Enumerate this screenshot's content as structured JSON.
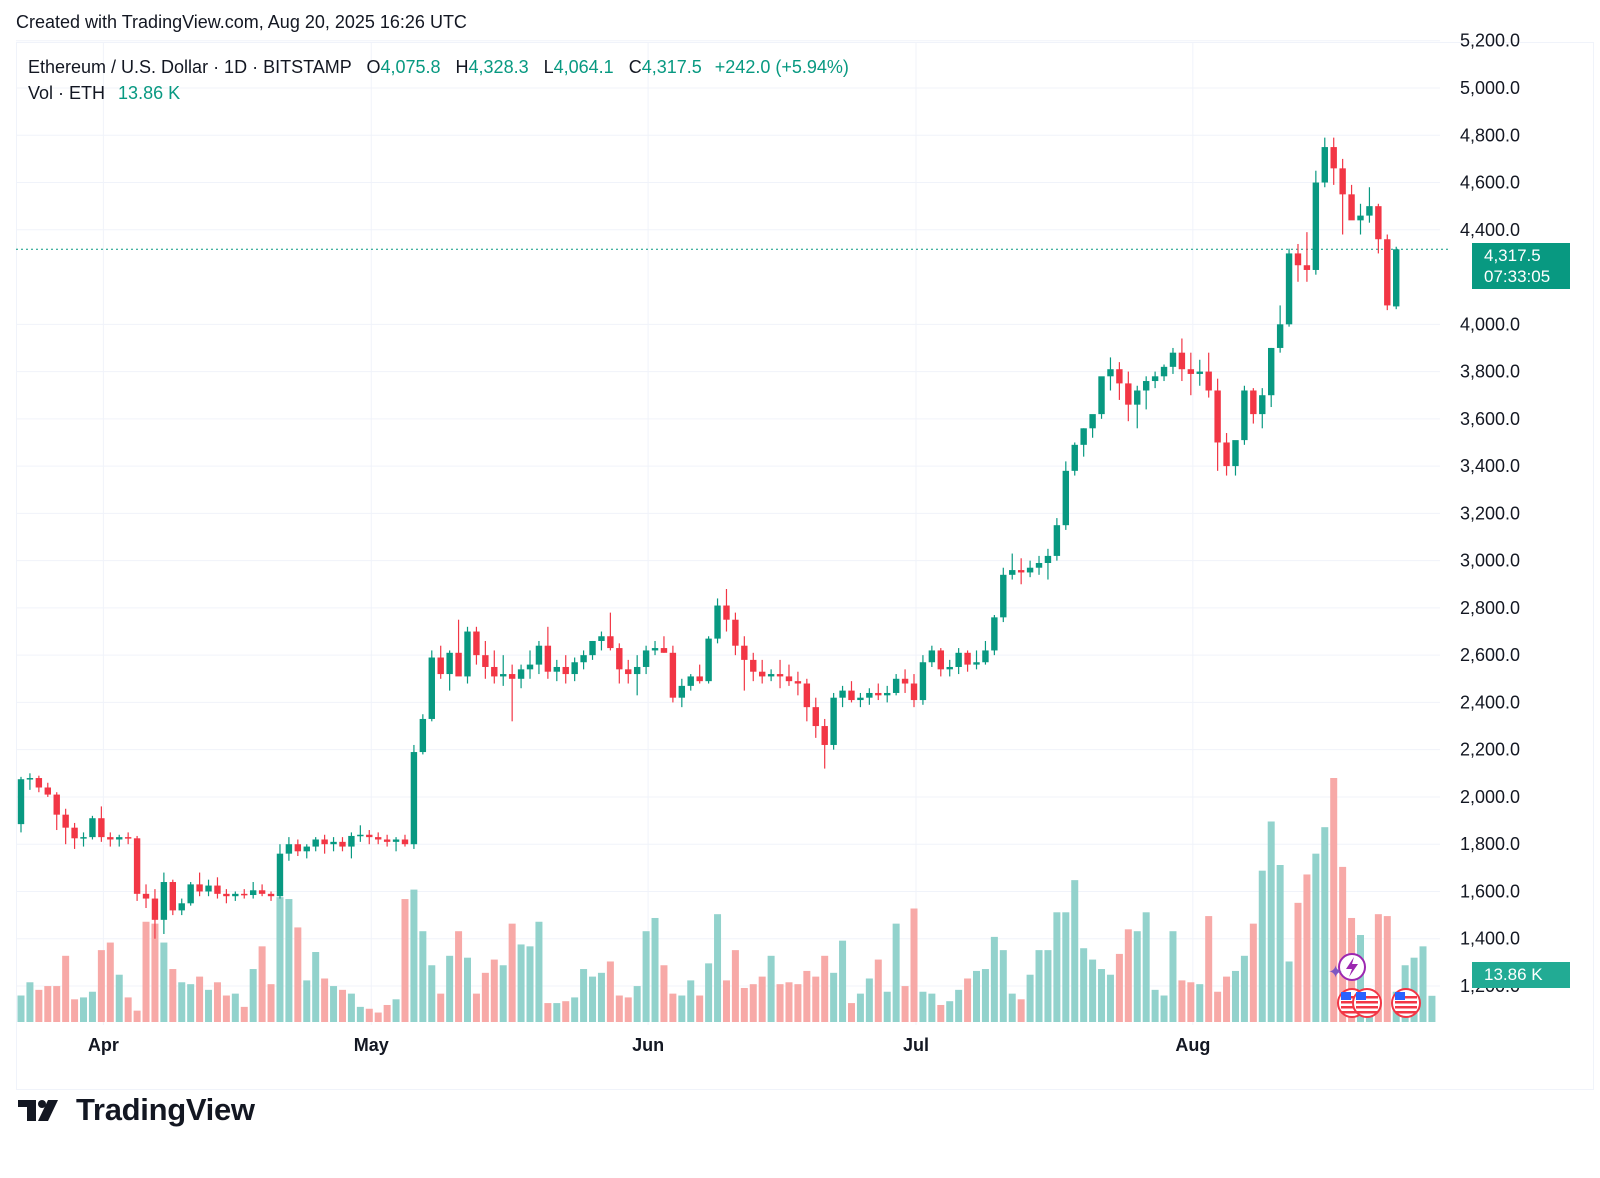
{
  "header": {
    "created_text": "Created with TradingView.com, Aug 20, 2025 16:26 UTC"
  },
  "legend": {
    "symbol": "Ethereum / U.S. Dollar · 1D · BITSTAMP",
    "open_label": "O",
    "open_value": "4,075.8",
    "high_label": "H",
    "high_value": "4,328.3",
    "low_label": "L",
    "low_value": "4,064.1",
    "close_label": "C",
    "close_value": "4,317.5",
    "change_value": "+242.0 (+5.94%)",
    "vol_label": "Vol · ETH",
    "vol_value": "13.86 K"
  },
  "price_tag": {
    "price": "4,317.5",
    "countdown": "07:33:05"
  },
  "volume_tag": {
    "value": "13.86 K"
  },
  "brand": {
    "name": "TradingView"
  },
  "colors": {
    "up": "#089981",
    "down": "#f23645",
    "vol_up": "#92d2cc",
    "vol_down": "#f7a9a7",
    "grid": "#f0f3fa"
  },
  "chart_data": {
    "type": "candlestick",
    "y_axis": {
      "ticks": [
        "1,200.0",
        "1,400.0",
        "1,600.0",
        "1,800.0",
        "2,000.0",
        "2,200.0",
        "2,400.0",
        "2,600.0",
        "2,800.0",
        "3,000.0",
        "3,200.0",
        "3,400.0",
        "3,600.0",
        "3,800.0",
        "4,000.0",
        "4,400.0",
        "4,600.0",
        "4,800.0",
        "5,000.0",
        "5,200.0"
      ],
      "tick_values": [
        1200,
        1400,
        1600,
        1800,
        2000,
        2200,
        2400,
        2600,
        2800,
        3000,
        3200,
        3400,
        3600,
        3800,
        4000,
        4400,
        4600,
        4800,
        5000,
        5200
      ],
      "range": [
        1050,
        5220
      ]
    },
    "x_axis": {
      "labels": [
        "Apr",
        "May",
        "Jun",
        "Jul",
        "Aug"
      ],
      "label_day_index": [
        9,
        39,
        70,
        100,
        131
      ]
    },
    "last_price_line": 4317.5,
    "candles_ohlc": [
      [
        1885,
        2085,
        1850,
        2075
      ],
      [
        2075,
        2100,
        2030,
        2080
      ],
      [
        2080,
        2090,
        2020,
        2040
      ],
      [
        2040,
        2060,
        2000,
        2010
      ],
      [
        2010,
        2020,
        1860,
        1925
      ],
      [
        1925,
        1950,
        1800,
        1870
      ],
      [
        1870,
        1890,
        1780,
        1825
      ],
      [
        1825,
        1850,
        1790,
        1830
      ],
      [
        1830,
        1920,
        1820,
        1910
      ],
      [
        1910,
        1960,
        1810,
        1830
      ],
      [
        1830,
        1850,
        1790,
        1820
      ],
      [
        1820,
        1840,
        1790,
        1830
      ],
      [
        1830,
        1850,
        1800,
        1825
      ],
      [
        1825,
        1835,
        1560,
        1590
      ],
      [
        1590,
        1630,
        1530,
        1570
      ],
      [
        1570,
        1610,
        1400,
        1480
      ],
      [
        1480,
        1680,
        1420,
        1640
      ],
      [
        1640,
        1650,
        1500,
        1520
      ],
      [
        1520,
        1570,
        1500,
        1550
      ],
      [
        1550,
        1640,
        1540,
        1630
      ],
      [
        1630,
        1680,
        1580,
        1600
      ],
      [
        1600,
        1650,
        1580,
        1625
      ],
      [
        1625,
        1660,
        1570,
        1590
      ],
      [
        1590,
        1610,
        1550,
        1580
      ],
      [
        1580,
        1600,
        1560,
        1590
      ],
      [
        1590,
        1610,
        1570,
        1585
      ],
      [
        1585,
        1640,
        1570,
        1605
      ],
      [
        1605,
        1630,
        1580,
        1590
      ],
      [
        1590,
        1600,
        1560,
        1580
      ],
      [
        1580,
        1800,
        1570,
        1760
      ],
      [
        1760,
        1830,
        1730,
        1800
      ],
      [
        1800,
        1820,
        1750,
        1770
      ],
      [
        1770,
        1800,
        1740,
        1790
      ],
      [
        1790,
        1830,
        1770,
        1820
      ],
      [
        1820,
        1840,
        1760,
        1800
      ],
      [
        1800,
        1830,
        1770,
        1810
      ],
      [
        1810,
        1830,
        1770,
        1790
      ],
      [
        1790,
        1850,
        1740,
        1835
      ],
      [
        1835,
        1880,
        1810,
        1840
      ],
      [
        1840,
        1860,
        1800,
        1830
      ],
      [
        1830,
        1850,
        1800,
        1820
      ],
      [
        1820,
        1840,
        1790,
        1810
      ],
      [
        1810,
        1830,
        1770,
        1820
      ],
      [
        1820,
        1840,
        1790,
        1800
      ],
      [
        1800,
        2220,
        1780,
        2190
      ],
      [
        2190,
        2350,
        2180,
        2330
      ],
      [
        2330,
        2620,
        2320,
        2590
      ],
      [
        2590,
        2640,
        2500,
        2520
      ],
      [
        2520,
        2620,
        2450,
        2610
      ],
      [
        2610,
        2750,
        2560,
        2510
      ],
      [
        2510,
        2720,
        2480,
        2700
      ],
      [
        2700,
        2720,
        2560,
        2600
      ],
      [
        2600,
        2660,
        2500,
        2550
      ],
      [
        2550,
        2620,
        2480,
        2510
      ],
      [
        2510,
        2600,
        2470,
        2520
      ],
      [
        2520,
        2560,
        2320,
        2500
      ],
      [
        2500,
        2560,
        2460,
        2540
      ],
      [
        2540,
        2620,
        2500,
        2560
      ],
      [
        2560,
        2660,
        2520,
        2640
      ],
      [
        2640,
        2720,
        2500,
        2530
      ],
      [
        2530,
        2580,
        2490,
        2550
      ],
      [
        2550,
        2600,
        2480,
        2520
      ],
      [
        2520,
        2590,
        2490,
        2570
      ],
      [
        2570,
        2620,
        2540,
        2600
      ],
      [
        2600,
        2660,
        2580,
        2660
      ],
      [
        2660,
        2700,
        2620,
        2680
      ],
      [
        2680,
        2780,
        2620,
        2630
      ],
      [
        2630,
        2650,
        2480,
        2540
      ],
      [
        2540,
        2580,
        2480,
        2520
      ],
      [
        2520,
        2600,
        2430,
        2550
      ],
      [
        2550,
        2640,
        2520,
        2620
      ],
      [
        2620,
        2660,
        2600,
        2630
      ],
      [
        2630,
        2680,
        2610,
        2610
      ],
      [
        2610,
        2640,
        2400,
        2420
      ],
      [
        2420,
        2500,
        2380,
        2470
      ],
      [
        2470,
        2520,
        2450,
        2510
      ],
      [
        2510,
        2560,
        2480,
        2490
      ],
      [
        2490,
        2680,
        2480,
        2670
      ],
      [
        2670,
        2840,
        2650,
        2810
      ],
      [
        2810,
        2880,
        2700,
        2750
      ],
      [
        2750,
        2780,
        2600,
        2640
      ],
      [
        2640,
        2680,
        2450,
        2580
      ],
      [
        2580,
        2610,
        2490,
        2530
      ],
      [
        2530,
        2580,
        2480,
        2510
      ],
      [
        2510,
        2540,
        2490,
        2520
      ],
      [
        2520,
        2580,
        2460,
        2510
      ],
      [
        2510,
        2560,
        2470,
        2490
      ],
      [
        2490,
        2530,
        2430,
        2480
      ],
      [
        2480,
        2500,
        2320,
        2380
      ],
      [
        2380,
        2420,
        2250,
        2300
      ],
      [
        2300,
        2330,
        2120,
        2220
      ],
      [
        2220,
        2440,
        2200,
        2420
      ],
      [
        2420,
        2470,
        2380,
        2450
      ],
      [
        2450,
        2490,
        2400,
        2410
      ],
      [
        2410,
        2440,
        2380,
        2420
      ],
      [
        2420,
        2460,
        2390,
        2440
      ],
      [
        2440,
        2480,
        2410,
        2430
      ],
      [
        2430,
        2470,
        2400,
        2440
      ],
      [
        2440,
        2520,
        2430,
        2500
      ],
      [
        2500,
        2540,
        2440,
        2480
      ],
      [
        2480,
        2520,
        2380,
        2410
      ],
      [
        2410,
        2600,
        2390,
        2570
      ],
      [
        2570,
        2640,
        2550,
        2620
      ],
      [
        2620,
        2630,
        2510,
        2540
      ],
      [
        2540,
        2580,
        2510,
        2550
      ],
      [
        2550,
        2630,
        2520,
        2610
      ],
      [
        2610,
        2620,
        2530,
        2560
      ],
      [
        2560,
        2620,
        2540,
        2570
      ],
      [
        2570,
        2660,
        2560,
        2620
      ],
      [
        2620,
        2770,
        2600,
        2760
      ],
      [
        2760,
        2970,
        2740,
        2940
      ],
      [
        2940,
        3030,
        2920,
        2960
      ],
      [
        2960,
        3010,
        2900,
        2950
      ],
      [
        2950,
        3000,
        2930,
        2970
      ],
      [
        2970,
        3020,
        2940,
        2990
      ],
      [
        2990,
        3050,
        2920,
        3020
      ],
      [
        3020,
        3180,
        3000,
        3150
      ],
      [
        3150,
        3420,
        3130,
        3380
      ],
      [
        3380,
        3500,
        3360,
        3490
      ],
      [
        3490,
        3560,
        3440,
        3560
      ],
      [
        3560,
        3610,
        3520,
        3620
      ],
      [
        3620,
        3740,
        3600,
        3780
      ],
      [
        3780,
        3860,
        3720,
        3810
      ],
      [
        3810,
        3840,
        3680,
        3750
      ],
      [
        3750,
        3800,
        3590,
        3660
      ],
      [
        3660,
        3740,
        3560,
        3720
      ],
      [
        3720,
        3780,
        3640,
        3760
      ],
      [
        3760,
        3800,
        3730,
        3780
      ],
      [
        3780,
        3830,
        3760,
        3820
      ],
      [
        3820,
        3900,
        3790,
        3880
      ],
      [
        3880,
        3940,
        3760,
        3810
      ],
      [
        3810,
        3880,
        3700,
        3790
      ],
      [
        3790,
        3850,
        3740,
        3800
      ],
      [
        3800,
        3880,
        3690,
        3720
      ],
      [
        3720,
        3770,
        3380,
        3500
      ],
      [
        3500,
        3540,
        3360,
        3400
      ],
      [
        3400,
        3500,
        3360,
        3510
      ],
      [
        3510,
        3740,
        3490,
        3720
      ],
      [
        3720,
        3730,
        3580,
        3620
      ],
      [
        3620,
        3730,
        3560,
        3700
      ],
      [
        3700,
        3900,
        3650,
        3900
      ],
      [
        3900,
        4080,
        3880,
        4000
      ],
      [
        4000,
        4320,
        3990,
        4300
      ],
      [
        4300,
        4340,
        4180,
        4250
      ],
      [
        4250,
        4390,
        4180,
        4230
      ],
      [
        4230,
        4650,
        4210,
        4600
      ],
      [
        4600,
        4790,
        4580,
        4750
      ],
      [
        4750,
        4790,
        4590,
        4660
      ],
      [
        4660,
        4700,
        4380,
        4550
      ],
      [
        4550,
        4590,
        4450,
        4440
      ],
      [
        4440,
        4510,
        4380,
        4460
      ],
      [
        4460,
        4580,
        4430,
        4500
      ],
      [
        4500,
        4510,
        4300,
        4360
      ],
      [
        4360,
        4380,
        4060,
        4080
      ],
      [
        4075.8,
        4328.3,
        4064.1,
        4317.5
      ]
    ],
    "volume": {
      "unit": "K ETH",
      "values": [
        14,
        21,
        17,
        19,
        19,
        35,
        12,
        13,
        16,
        38,
        42,
        25,
        13,
        6,
        53,
        52,
        42,
        28,
        21,
        20,
        24,
        17,
        21,
        14,
        15,
        8,
        28,
        40,
        20,
        66,
        65,
        50,
        22,
        37,
        23,
        19,
        17,
        15,
        8,
        7,
        5,
        9,
        12,
        65,
        70,
        48,
        30,
        15,
        35,
        48,
        34,
        15,
        26,
        33,
        30,
        52,
        41,
        40,
        53,
        10,
        10,
        11,
        13,
        28,
        24,
        26,
        32,
        14,
        13,
        19,
        48,
        55,
        30,
        15,
        14,
        22,
        14,
        31,
        57,
        22,
        38,
        18,
        20,
        24,
        35,
        20,
        21,
        20,
        27,
        24,
        35,
        26,
        43,
        10,
        15,
        23,
        33,
        16,
        52,
        19,
        60,
        16,
        15,
        9,
        11,
        17,
        23,
        27,
        28,
        45,
        38,
        15,
        12,
        25,
        38,
        38,
        58,
        58,
        75,
        39,
        33,
        28,
        25,
        36,
        49,
        48,
        58,
        17,
        14,
        48,
        22,
        21,
        20,
        56,
        16,
        24,
        27,
        35,
        52,
        80,
        106,
        83,
        32,
        63,
        78,
        89,
        103,
        129,
        82,
        55,
        46,
        12,
        57,
        56,
        16,
        30,
        34,
        40,
        13.86
      ]
    }
  }
}
